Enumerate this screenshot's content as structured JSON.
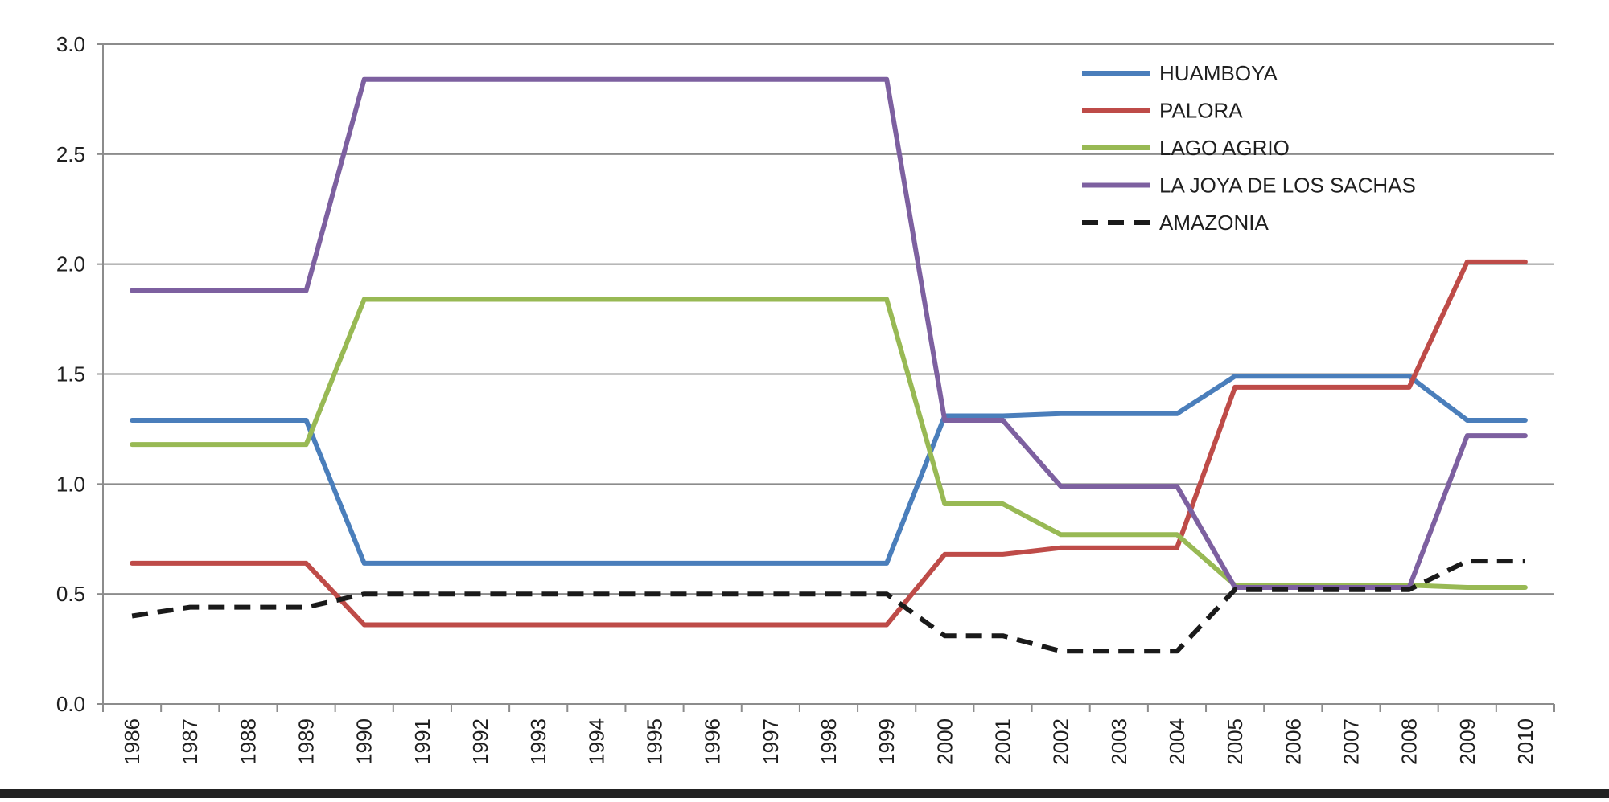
{
  "chart_data": {
    "type": "line",
    "title": "",
    "xlabel": "",
    "ylabel": "",
    "categories": [
      "1986",
      "1987",
      "1988",
      "1989",
      "1990",
      "1991",
      "1992",
      "1993",
      "1994",
      "1995",
      "1996",
      "1997",
      "1998",
      "1999",
      "2000",
      "2001",
      "2002",
      "2003",
      "2004",
      "2005",
      "2006",
      "2007",
      "2008",
      "2009",
      "2010"
    ],
    "ylim": [
      0,
      3.0
    ],
    "yticks": [
      "0.0",
      "0.5",
      "1.0",
      "1.5",
      "2.0",
      "2.5",
      "3.0"
    ],
    "grid": true,
    "legend_position": "top-right",
    "series": [
      {
        "name": "HUAMBOYA",
        "color": "#4a7ebb",
        "dash": false,
        "values": [
          1.29,
          1.29,
          1.29,
          1.29,
          0.64,
          0.64,
          0.64,
          0.64,
          0.64,
          0.64,
          0.64,
          0.64,
          0.64,
          0.64,
          1.31,
          1.31,
          1.32,
          1.32,
          1.32,
          1.49,
          1.49,
          1.49,
          1.49,
          1.29,
          1.29
        ]
      },
      {
        "name": "PALORA",
        "color": "#be4b48",
        "dash": false,
        "values": [
          0.64,
          0.64,
          0.64,
          0.64,
          0.36,
          0.36,
          0.36,
          0.36,
          0.36,
          0.36,
          0.36,
          0.36,
          0.36,
          0.36,
          0.68,
          0.68,
          0.71,
          0.71,
          0.71,
          1.44,
          1.44,
          1.44,
          1.44,
          2.01,
          2.01
        ]
      },
      {
        "name": "LAGO AGRIO",
        "color": "#98b954",
        "dash": false,
        "values": [
          1.18,
          1.18,
          1.18,
          1.18,
          1.84,
          1.84,
          1.84,
          1.84,
          1.84,
          1.84,
          1.84,
          1.84,
          1.84,
          1.84,
          0.91,
          0.91,
          0.77,
          0.77,
          0.77,
          0.54,
          0.54,
          0.54,
          0.54,
          0.53,
          0.53
        ]
      },
      {
        "name": "LA JOYA DE LOS SACHAS",
        "color": "#7d60a0",
        "dash": false,
        "values": [
          1.88,
          1.88,
          1.88,
          1.88,
          2.84,
          2.84,
          2.84,
          2.84,
          2.84,
          2.84,
          2.84,
          2.84,
          2.84,
          2.84,
          1.29,
          1.29,
          0.99,
          0.99,
          0.99,
          0.53,
          0.53,
          0.53,
          0.53,
          1.22,
          1.22
        ]
      },
      {
        "name": "AMAZONIA",
        "color": "#1a1a1a",
        "dash": true,
        "values": [
          0.4,
          0.44,
          0.44,
          0.44,
          0.5,
          0.5,
          0.5,
          0.5,
          0.5,
          0.5,
          0.5,
          0.5,
          0.5,
          0.5,
          0.31,
          0.31,
          0.24,
          0.24,
          0.24,
          0.52,
          0.52,
          0.52,
          0.52,
          0.65,
          0.65
        ]
      }
    ]
  }
}
